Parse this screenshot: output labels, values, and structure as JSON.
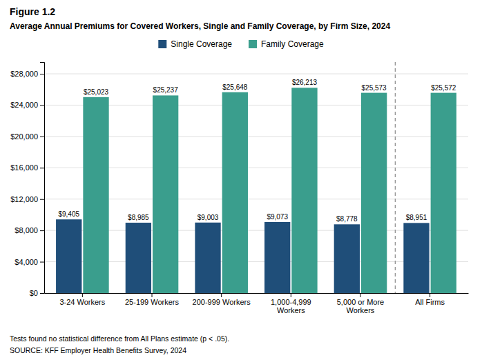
{
  "chart_data": {
    "type": "bar",
    "title": "Figure 1.2",
    "subtitle": "Average Annual Premiums for Covered Workers, Single and Family Coverage, by Firm Size, 2024",
    "categories": [
      "3-24 Workers",
      "25-199 Workers",
      "200-999 Workers",
      "1,000-4,999\nWorkers",
      "5,000 or More\nWorkers",
      "All Firms"
    ],
    "series": [
      {
        "name": "Single Coverage",
        "color": "#1f4e79",
        "values": [
          9405,
          8985,
          9003,
          9073,
          8778,
          8951
        ],
        "value_labels": [
          "$9,405",
          "$8,985",
          "$9,003",
          "$9,073",
          "$8,778",
          "$8,951"
        ]
      },
      {
        "name": "Family Coverage",
        "color": "#3a9e8d",
        "values": [
          25023,
          25237,
          25648,
          26213,
          25573,
          25572
        ],
        "value_labels": [
          "$25,023",
          "$25,237",
          "$25,648",
          "$26,213",
          "$25,573",
          "$25,572"
        ]
      }
    ],
    "ylim": [
      0,
      29500
    ],
    "yticks": [
      {
        "value": 0,
        "label": "$0"
      },
      {
        "value": 4000,
        "label": "$4,000"
      },
      {
        "value": 8000,
        "label": "$8,000"
      },
      {
        "value": 12000,
        "label": "$12,000"
      },
      {
        "value": 16000,
        "label": "$16,000"
      },
      {
        "value": 20000,
        "label": "$20,000"
      },
      {
        "value": 24000,
        "label": "$24,000"
      },
      {
        "value": 28000,
        "label": "$28,000"
      }
    ],
    "grid": true,
    "legend": "top",
    "data_labels": true,
    "annotations": [
      "Tests found no statistical difference from All Plans estimate (p < .05).",
      "SOURCE: KFF Employer Health Benefits Survey, 2024"
    ]
  }
}
